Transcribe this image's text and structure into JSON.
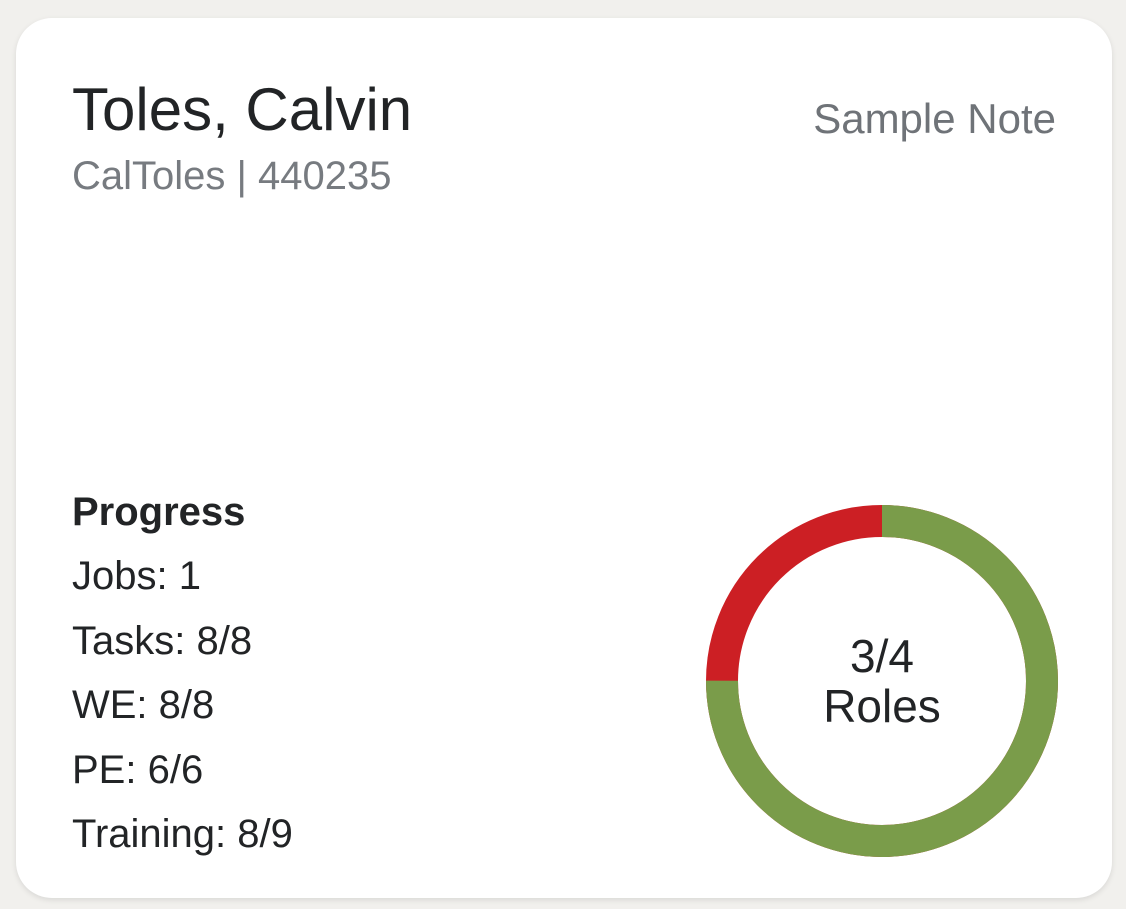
{
  "card": {
    "name": "Toles, Calvin",
    "subtitle": "CalToles | 440235",
    "note": "Sample Note"
  },
  "progress": {
    "title": "Progress",
    "rows": [
      "Jobs: 1",
      "Tasks: 8/8",
      "WE: 8/8",
      "PE: 6/6",
      "Training: 8/9"
    ]
  },
  "roles": {
    "completed": 3,
    "total": 4,
    "fraction_label": "3/4",
    "label": "Roles",
    "colors": {
      "complete": "#7a9c4a",
      "incomplete": "#cc1f24"
    }
  }
}
